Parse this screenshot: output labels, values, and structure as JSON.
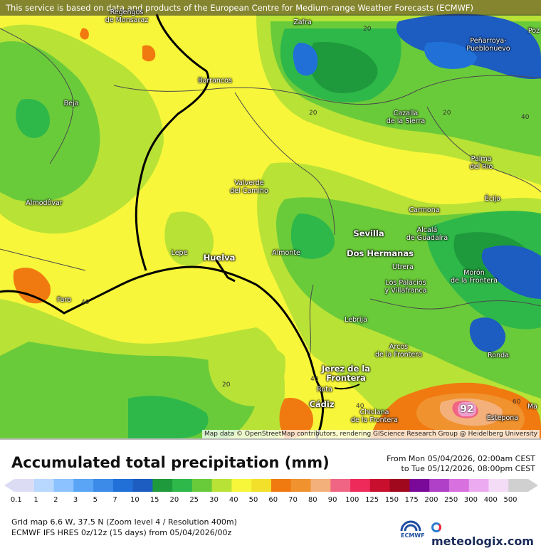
{
  "banner": "This service is based on data and products of the European Centre for Medium-range Weather Forecasts (ECMWF)",
  "attribution": "Map data © OpenStreetMap contributors, rendering GIScience Research Group @ Heidelberg University",
  "max_value": "92",
  "towns": [
    {
      "name": "Regengos\nde Monsaraz",
      "big": false
    },
    {
      "name": "Zafra",
      "big": false
    },
    {
      "name": "Peñarroya-\nPueblonuevo",
      "big": false
    },
    {
      "name": "Barrancos",
      "big": false
    },
    {
      "name": "Beja",
      "big": false
    },
    {
      "name": "Cazalla\nde la Sierra",
      "big": false
    },
    {
      "name": "Palma\ndel Río",
      "big": false
    },
    {
      "name": "Valverde\ndel Camino",
      "big": false
    },
    {
      "name": "Almodôvar",
      "big": false
    },
    {
      "name": "Écija",
      "big": false
    },
    {
      "name": "Carmona",
      "big": false
    },
    {
      "name": "Sevilla",
      "big": true
    },
    {
      "name": "Alcalá\nde Guadaíra",
      "big": false
    },
    {
      "name": "Lepe",
      "big": false
    },
    {
      "name": "Huelva",
      "big": true
    },
    {
      "name": "Almonte",
      "big": false
    },
    {
      "name": "Dos Hermanas",
      "big": true
    },
    {
      "name": "Utrera",
      "big": false
    },
    {
      "name": "Los Palacios\ny Villafranca",
      "big": false
    },
    {
      "name": "Morón\nde la Frontera",
      "big": false
    },
    {
      "name": "Faro",
      "big": false
    },
    {
      "name": "Lebrija",
      "big": false
    },
    {
      "name": "Arcos\nde la Frontera",
      "big": false
    },
    {
      "name": "Ronda",
      "big": false
    },
    {
      "name": "Jerez de la\nFrontera",
      "big": true
    },
    {
      "name": "Rota",
      "big": false
    },
    {
      "name": "Cádiz",
      "big": true
    },
    {
      "name": "Chiclana\nde la Frontera",
      "big": false
    },
    {
      "name": "Estepona",
      "big": false
    },
    {
      "name": "Ma",
      "big": false
    },
    {
      "name": "Poz",
      "big": false
    }
  ],
  "isolines": [
    "20",
    "20",
    "20",
    "40",
    "40",
    "40",
    "40",
    "20",
    "60",
    "40"
  ],
  "legend": {
    "title": "Accumulated total precipitation (mm)",
    "from": "From Mon 05/04/2026, 02:00am CEST",
    "to": "to Tue 05/12/2026, 08:00pm CEST",
    "ticks": [
      "0.1",
      "1",
      "2",
      "3",
      "5",
      "7",
      "10",
      "15",
      "20",
      "25",
      "30",
      "40",
      "50",
      "60",
      "70",
      "80",
      "90",
      "100",
      "125",
      "150",
      "175",
      "200",
      "250",
      "300",
      "400",
      "500"
    ],
    "colors": [
      "#dcdcf5",
      "#b9d8ff",
      "#8cc2ff",
      "#5aa5f5",
      "#3c8be8",
      "#2070d8",
      "#1d5cc0",
      "#1e9a3c",
      "#2fb84a",
      "#6acb3a",
      "#b8e236",
      "#f7f63a",
      "#f2e02a",
      "#f07a10",
      "#f0922e",
      "#f4b07a",
      "#f06484",
      "#ee2a5a",
      "#c8102e",
      "#a0081e",
      "#7a0898",
      "#b040c8",
      "#d870e0",
      "#ecaaf0",
      "#f4dcf6",
      "#d0d0d0"
    ],
    "grid": "Grid map 6.6 W, 37.5 N (Zoom level 4 / Resolution 400m)",
    "model": "ECMWF IFS HRES 0z/12z (15 days) from 05/04/2026/00z",
    "ecmwf_logo": "ECMWF",
    "brand": "meteologix.com"
  }
}
